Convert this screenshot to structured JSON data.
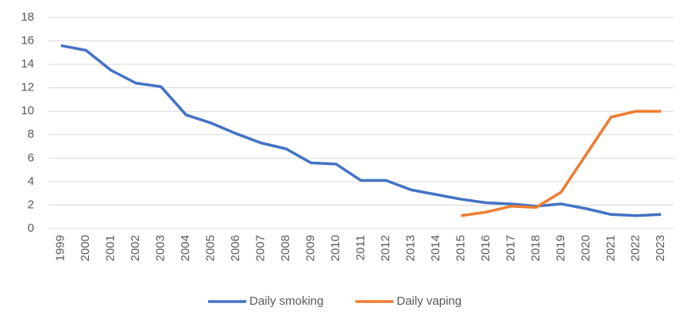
{
  "chart_data": {
    "type": "line",
    "categories": [
      "1999",
      "2000",
      "2001",
      "2002",
      "2003",
      "2004",
      "2005",
      "2006",
      "2007",
      "2008",
      "2009",
      "2010",
      "2011",
      "2012",
      "2013",
      "2014",
      "2015",
      "2016",
      "2017",
      "2018",
      "2019",
      "2020",
      "2021",
      "2022",
      "2023"
    ],
    "series": [
      {
        "name": "Daily smoking",
        "color": "#4472c4",
        "values": [
          15.6,
          15.2,
          13.5,
          12.4,
          12.1,
          9.7,
          9.0,
          8.1,
          7.3,
          6.8,
          5.6,
          5.5,
          4.1,
          4.1,
          3.3,
          2.9,
          2.5,
          2.2,
          2.1,
          1.9,
          2.1,
          1.7,
          1.2,
          1.1,
          1.2
        ]
      },
      {
        "name": "Daily vaping",
        "color": "#ed7d31",
        "values": [
          null,
          null,
          null,
          null,
          null,
          null,
          null,
          null,
          null,
          null,
          null,
          null,
          null,
          null,
          null,
          null,
          1.1,
          1.4,
          1.9,
          1.8,
          3.1,
          6.3,
          9.5,
          10.0,
          10.0
        ]
      }
    ],
    "ylim": [
      0,
      18
    ],
    "yticks": [
      0,
      2,
      4,
      6,
      8,
      10,
      12,
      14,
      16,
      18
    ],
    "grid": true,
    "legend": "bottom"
  }
}
